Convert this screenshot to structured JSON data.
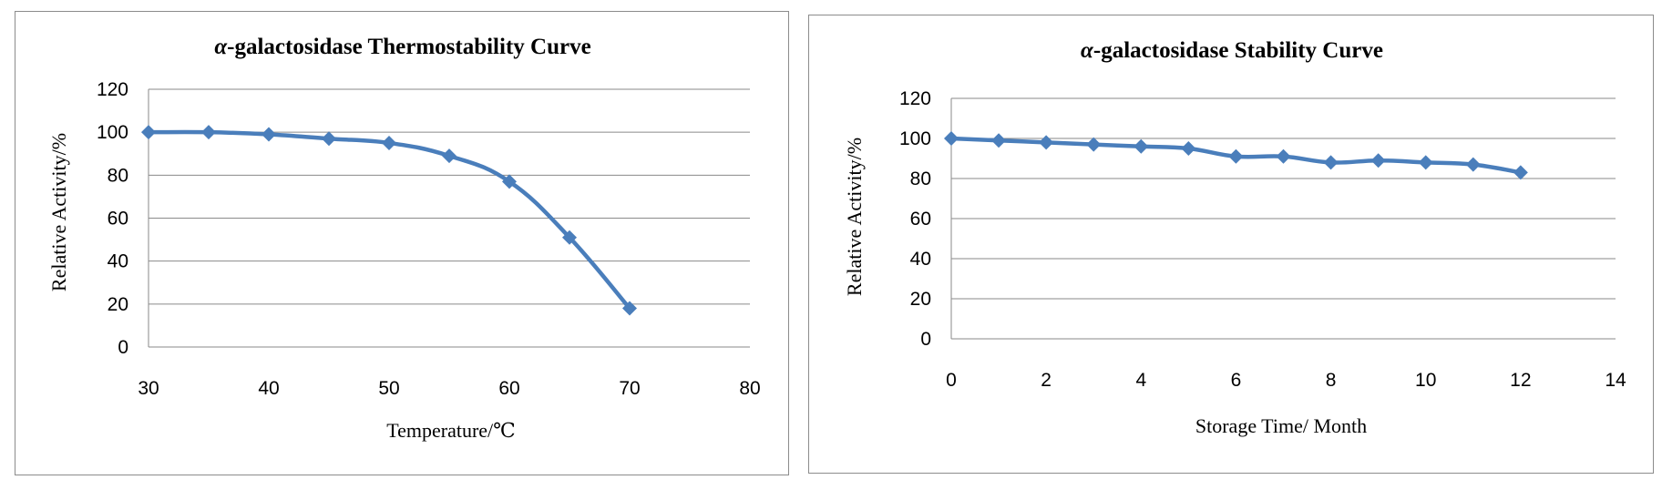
{
  "colors": {
    "series": "#4a7ebb",
    "grid": "#8a8a8a"
  },
  "chart_data": [
    {
      "type": "line",
      "title_prefix": "α",
      "title_rest": "-galactosidase Thermostability Curve",
      "xlabel": "Temperature/℃",
      "ylabel": "Relative Activity/%",
      "xlim": [
        30,
        80
      ],
      "ylim": [
        0,
        120
      ],
      "x_ticks": [
        30,
        40,
        50,
        60,
        70,
        80
      ],
      "y_ticks": [
        0,
        20,
        40,
        60,
        80,
        100,
        120
      ],
      "marker": "diamond",
      "smooth": true,
      "grid": true,
      "series": [
        {
          "x": [
            30,
            35,
            40,
            45,
            50,
            55,
            60,
            65,
            70
          ],
          "y": [
            100,
            100,
            99,
            97,
            95,
            89,
            77,
            51,
            18
          ]
        }
      ]
    },
    {
      "type": "line",
      "title_prefix": "α",
      "title_rest": "-galactosidase Stability Curve",
      "xlabel": "Storage Time/ Month",
      "ylabel": "Relative Activity/%",
      "xlim": [
        0,
        14
      ],
      "ylim": [
        0,
        120
      ],
      "x_ticks": [
        0,
        2,
        4,
        6,
        8,
        10,
        12,
        14
      ],
      "y_ticks": [
        0,
        20,
        40,
        60,
        80,
        100,
        120
      ],
      "marker": "diamond",
      "smooth": true,
      "grid": true,
      "series": [
        {
          "x": [
            0,
            1,
            2,
            3,
            4,
            5,
            6,
            7,
            8,
            9,
            10,
            11,
            12
          ],
          "y": [
            100,
            99,
            98,
            97,
            96,
            95,
            91,
            91,
            88,
            89,
            88,
            87,
            83
          ]
        }
      ]
    }
  ]
}
